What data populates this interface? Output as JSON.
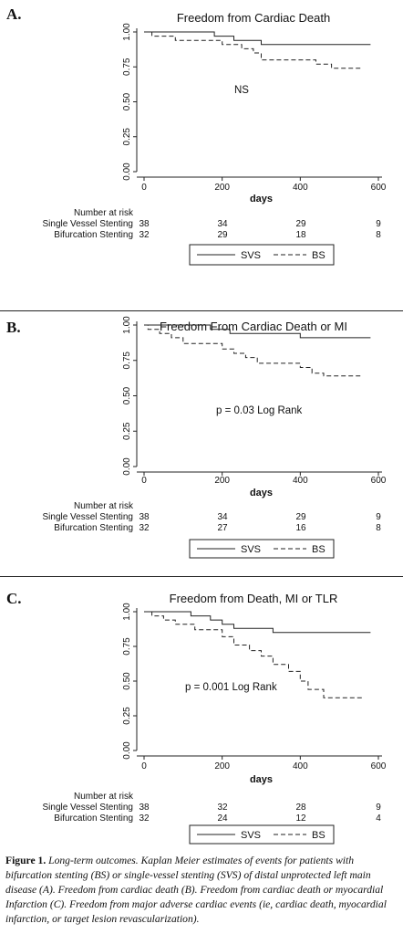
{
  "chart_data": [
    {
      "panel_label": "A.",
      "type": "line",
      "title": "Freedom from Cardiac Death",
      "xlabel": "days",
      "ylabel": "",
      "xlim": [
        0,
        600
      ],
      "ylim": [
        0,
        1
      ],
      "xticks": [
        "0",
        "200",
        "400",
        "600"
      ],
      "yticks": [
        "0.00",
        "0.25",
        "0.50",
        "0.75",
        "1.00"
      ],
      "annotation": "NS",
      "risk_header": "Number at risk",
      "risk_rows": [
        {
          "label": "Single Vessel Stenting",
          "values": [
            "38",
            "34",
            "29",
            "9"
          ]
        },
        {
          "label": "Bifurcation Stenting",
          "values": [
            "32",
            "29",
            "18",
            "8"
          ]
        }
      ],
      "legend": [
        "SVS",
        "BS"
      ],
      "series": [
        {
          "name": "SVS",
          "style": "solid",
          "x": [
            0,
            180,
            180,
            230,
            230,
            300,
            300,
            580
          ],
          "y": [
            1.0,
            1.0,
            0.97,
            0.97,
            0.94,
            0.94,
            0.91,
            0.91
          ]
        },
        {
          "name": "BS",
          "style": "dashed",
          "x": [
            0,
            20,
            20,
            80,
            80,
            200,
            200,
            250,
            250,
            280,
            280,
            300,
            300,
            340,
            340,
            370,
            370,
            440,
            440,
            480,
            480,
            555
          ],
          "y": [
            1.0,
            1.0,
            0.97,
            0.97,
            0.94,
            0.94,
            0.91,
            0.91,
            0.88,
            0.88,
            0.85,
            0.85,
            0.8,
            0.8,
            0.8,
            0.8,
            0.8,
            0.8,
            0.77,
            0.77,
            0.74,
            0.74
          ]
        }
      ]
    },
    {
      "panel_label": "B.",
      "type": "line",
      "title": "Freedom From Cardiac Death or MI",
      "xlabel": "days",
      "ylabel": "",
      "xlim": [
        0,
        600
      ],
      "ylim": [
        0,
        1
      ],
      "xticks": [
        "0",
        "200",
        "400",
        "600"
      ],
      "yticks": [
        "0.00",
        "0.25",
        "0.50",
        "0.75",
        "1.00"
      ],
      "annotation": "p = 0.03 Log Rank",
      "risk_header": "Number at risk",
      "risk_rows": [
        {
          "label": "Single Vessel Stenting",
          "values": [
            "38",
            "34",
            "29",
            "9"
          ]
        },
        {
          "label": "Bifurcation Stenting",
          "values": [
            "32",
            "27",
            "16",
            "8"
          ]
        }
      ],
      "legend": [
        "SVS",
        "BS"
      ],
      "series": [
        {
          "name": "SVS",
          "style": "solid",
          "x": [
            0,
            170,
            170,
            220,
            220,
            400,
            400,
            580
          ],
          "y": [
            1.0,
            1.0,
            0.97,
            0.97,
            0.94,
            0.94,
            0.91,
            0.91
          ]
        },
        {
          "name": "BS",
          "style": "dashed",
          "x": [
            0,
            10,
            10,
            40,
            40,
            70,
            70,
            100,
            100,
            200,
            200,
            230,
            230,
            260,
            260,
            290,
            290,
            330,
            330,
            400,
            400,
            430,
            430,
            460,
            460,
            560
          ],
          "y": [
            1.0,
            1.0,
            0.97,
            0.97,
            0.94,
            0.94,
            0.91,
            0.91,
            0.87,
            0.87,
            0.83,
            0.83,
            0.8,
            0.8,
            0.77,
            0.77,
            0.73,
            0.73,
            0.73,
            0.73,
            0.7,
            0.7,
            0.66,
            0.66,
            0.64,
            0.64
          ]
        }
      ]
    },
    {
      "panel_label": "C.",
      "type": "line",
      "title": "Freedom from Death, MI or TLR",
      "xlabel": "days",
      "ylabel": "",
      "xlim": [
        0,
        600
      ],
      "ylim": [
        0,
        1
      ],
      "xticks": [
        "0",
        "200",
        "400",
        "600"
      ],
      "yticks": [
        "0.00",
        "0.25",
        "0.50",
        "0.75",
        "1.00"
      ],
      "annotation": "p = 0.001 Log Rank",
      "risk_header": "Number at risk",
      "risk_rows": [
        {
          "label": "Single Vessel Stenting",
          "values": [
            "38",
            "32",
            "28",
            "9"
          ]
        },
        {
          "label": "Bifurcation Stenting",
          "values": [
            "32",
            "24",
            "12",
            "4"
          ]
        }
      ],
      "legend": [
        "SVS",
        "BS"
      ],
      "series": [
        {
          "name": "SVS",
          "style": "solid",
          "x": [
            0,
            120,
            120,
            170,
            170,
            200,
            200,
            230,
            230,
            330,
            330,
            580
          ],
          "y": [
            1.0,
            1.0,
            0.97,
            0.97,
            0.94,
            0.94,
            0.91,
            0.91,
            0.88,
            0.88,
            0.85,
            0.85
          ]
        },
        {
          "name": "BS",
          "style": "dashed",
          "x": [
            0,
            20,
            20,
            50,
            50,
            80,
            80,
            130,
            130,
            200,
            200,
            230,
            230,
            270,
            270,
            300,
            300,
            330,
            330,
            370,
            370,
            400,
            400,
            420,
            420,
            460,
            460,
            560
          ],
          "y": [
            1.0,
            1.0,
            0.97,
            0.97,
            0.94,
            0.94,
            0.91,
            0.91,
            0.87,
            0.87,
            0.82,
            0.82,
            0.76,
            0.76,
            0.72,
            0.72,
            0.68,
            0.68,
            0.62,
            0.62,
            0.57,
            0.57,
            0.5,
            0.5,
            0.44,
            0.44,
            0.38,
            0.38
          ]
        }
      ]
    }
  ],
  "caption": {
    "lead": "Figure 1.",
    "text": "Long-term outcomes. Kaplan Meier estimates of events for patients with bifurcation stenting (BS) or single-vessel stenting (SVS) of distal unprotected left main disease (A). Freedom from cardiac death (B). Freedom from cardiac death or myocardial Infarction (C). Freedom from major adverse cardiac events (ie, cardiac death, myocardial infarction, or target lesion revascularization)."
  }
}
